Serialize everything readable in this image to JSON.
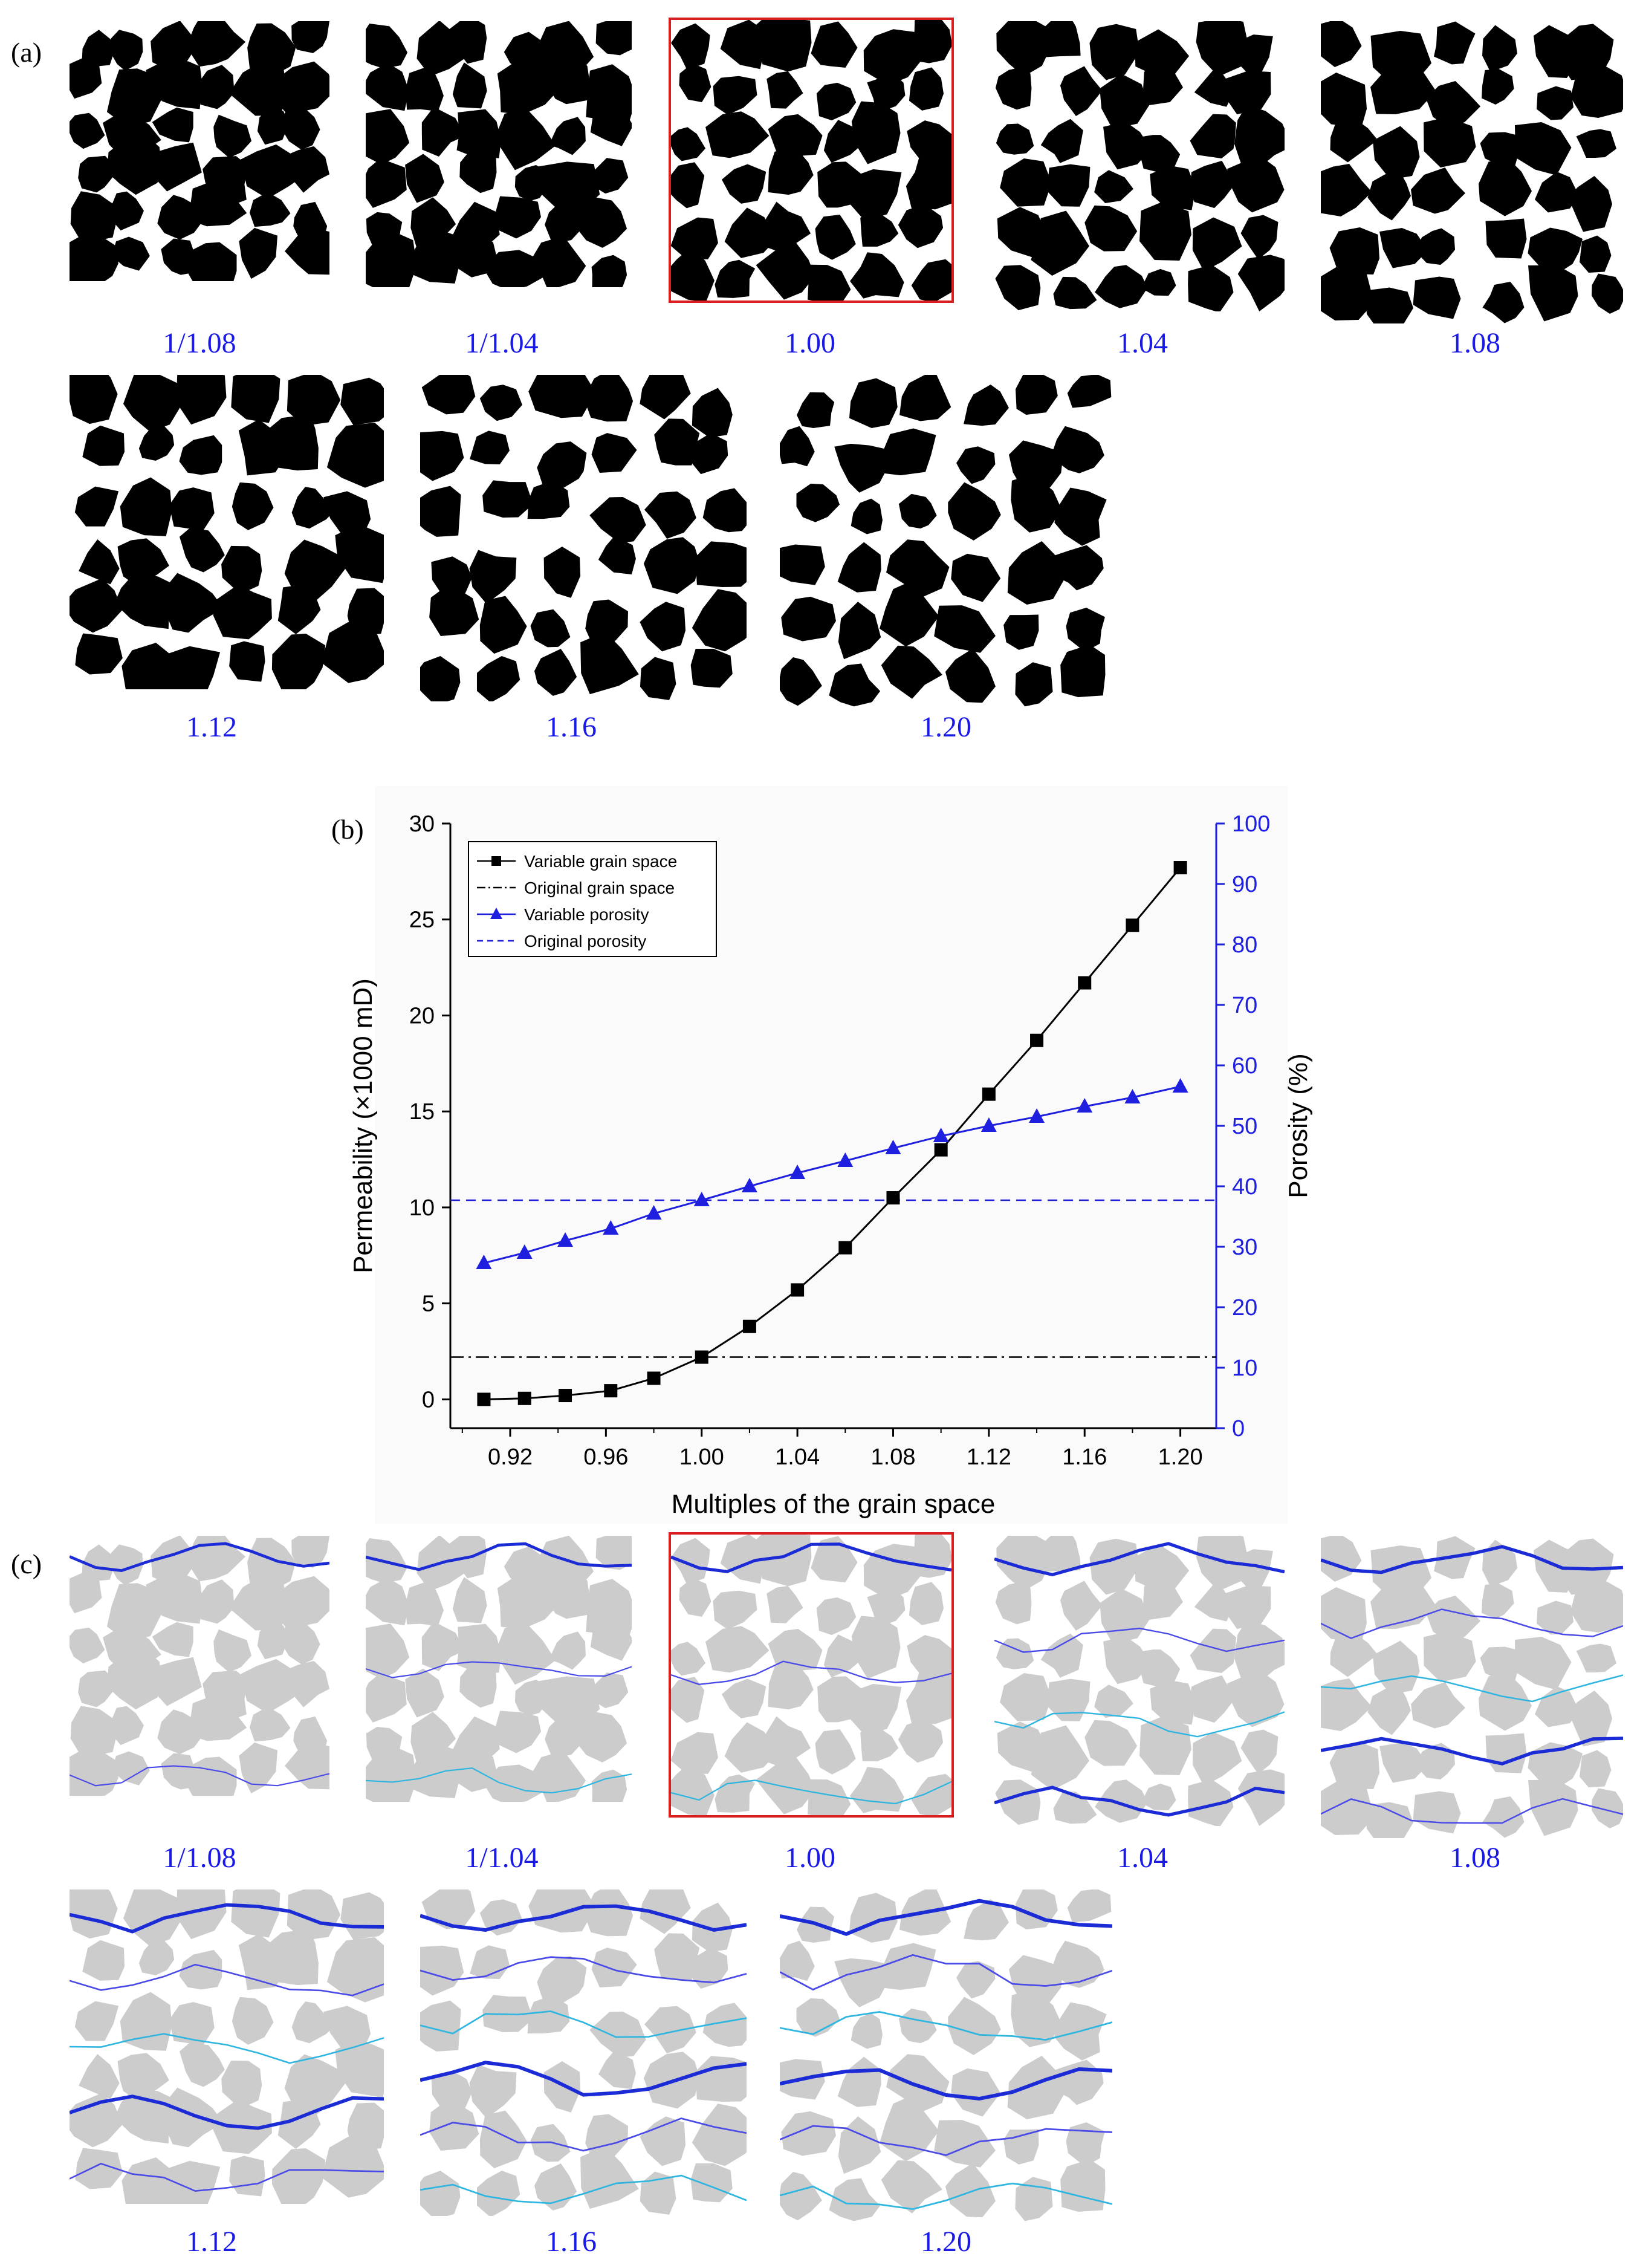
{
  "panel_labels": {
    "a": "(a)",
    "b": "(b)",
    "c": "(c)"
  },
  "panel_a": {
    "tiles": [
      {
        "label": "1/1.08",
        "highlight": false
      },
      {
        "label": "1/1.04",
        "highlight": false
      },
      {
        "label": "1.00",
        "highlight": true
      },
      {
        "label": "1.04",
        "highlight": false
      },
      {
        "label": "1.08",
        "highlight": false
      },
      {
        "label": "1.12",
        "highlight": false
      },
      {
        "label": "1.16",
        "highlight": false
      },
      {
        "label": "1.20",
        "highlight": false
      }
    ]
  },
  "panel_c": {
    "tiles": [
      {
        "label": "1/1.08",
        "highlight": false
      },
      {
        "label": "1/1.04",
        "highlight": false
      },
      {
        "label": "1.00",
        "highlight": true
      },
      {
        "label": "1.04",
        "highlight": false
      },
      {
        "label": "1.08",
        "highlight": false
      },
      {
        "label": "1.12",
        "highlight": false
      },
      {
        "label": "1.16",
        "highlight": false
      },
      {
        "label": "1.20",
        "highlight": false
      }
    ]
  },
  "colors": {
    "label_blue": "#1a1ae6",
    "grain_black": "#000000",
    "grain_gray": "#cccccc",
    "highlight_red": "#d81e1e",
    "porosity_blue": "#1f1fe0",
    "permeability_black": "#000000"
  },
  "chart_data": {
    "type": "line",
    "title": "",
    "xlabel": "Multiples of the grain space",
    "ylabel_left": "Permeability (×1000 mD)",
    "ylabel_right": "Porosity (%)",
    "xlim": [
      0.895,
      1.215
    ],
    "ylim_left": [
      -1.5,
      30
    ],
    "ylim_right": [
      0,
      100
    ],
    "x_ticks": [
      "0.92",
      "0.96",
      "1.00",
      "1.04",
      "1.08",
      "1.12",
      "1.16",
      "1.20"
    ],
    "y_left_ticks": [
      "0",
      "5",
      "10",
      "15",
      "20",
      "25",
      "30"
    ],
    "y_right_ticks": [
      "0",
      "10",
      "20",
      "30",
      "40",
      "50",
      "60",
      "70",
      "80",
      "90",
      "100"
    ],
    "legend_position": "top-left",
    "legend": [
      "Variable grain space",
      "Original grain space",
      "Variable porosity",
      "Original porosity"
    ],
    "x": [
      0.909,
      0.926,
      0.943,
      0.962,
      0.98,
      1.0,
      1.02,
      1.04,
      1.06,
      1.08,
      1.1,
      1.12,
      1.14,
      1.16,
      1.18,
      1.2
    ],
    "series": [
      {
        "name": "Variable grain space",
        "axis": "left",
        "marker": "square",
        "color": "#000000",
        "values": [
          0.0,
          0.05,
          0.2,
          0.45,
          1.1,
          2.2,
          3.8,
          5.7,
          7.9,
          10.5,
          13.0,
          15.9,
          18.7,
          21.7,
          24.7,
          27.7
        ]
      },
      {
        "name": "Variable porosity",
        "axis": "right",
        "marker": "triangle",
        "color": "#1f1fe0",
        "values": [
          27.3,
          29.0,
          31.0,
          33.0,
          35.5,
          37.7,
          40.0,
          42.2,
          44.2,
          46.3,
          48.3,
          50.0,
          51.5,
          53.2,
          54.7,
          56.5
        ]
      }
    ],
    "reference_lines": [
      {
        "name": "Original grain space",
        "axis": "left",
        "value": 2.2,
        "style": "dash-dot",
        "color": "#000000"
      },
      {
        "name": "Original porosity",
        "axis": "right",
        "value": 37.7,
        "style": "dashed",
        "color": "#1f1fe0"
      }
    ]
  }
}
